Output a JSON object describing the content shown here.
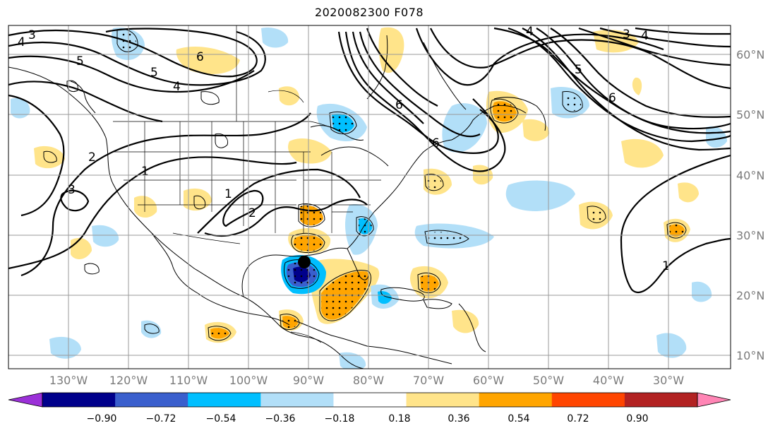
{
  "title": "2020082300 F078",
  "lon_labels": [
    "130°W",
    "120°W",
    "110°W",
    "100°W",
    "90°W",
    "80°W",
    "70°W",
    "60°W",
    "50°W",
    "40°W",
    "30°W"
  ],
  "lat_labels": [
    "60°N",
    "50°N",
    "40°N",
    "30°N",
    "20°N",
    "10°N"
  ],
  "colorbar": {
    "ticks": [
      "−0.90",
      "−0.72",
      "−0.54",
      "−0.36",
      "−0.18",
      "0.18",
      "0.36",
      "0.54",
      "0.72",
      "0.90"
    ],
    "colors": [
      "#9b30d8",
      "#00008b",
      "#3a5fcd",
      "#00bfff",
      "#b2dff8",
      "#ffffff",
      "#ffe48a",
      "#ffa500",
      "#ff4500",
      "#b22222",
      "#ff85b5"
    ]
  },
  "contour_labels": [
    "3",
    "4",
    "5",
    "5",
    "4",
    "6",
    "2",
    "1",
    "1",
    "2",
    "3",
    "6",
    "6",
    "4",
    "3",
    "4",
    "6",
    "5",
    "1"
  ],
  "map": {
    "marker_color": "#000000",
    "positive_colors": [
      "#ffe48a",
      "#ffa500"
    ],
    "negative_colors": [
      "#b2dff8",
      "#00bfff",
      "#3a5fcd",
      "#00008b"
    ]
  }
}
